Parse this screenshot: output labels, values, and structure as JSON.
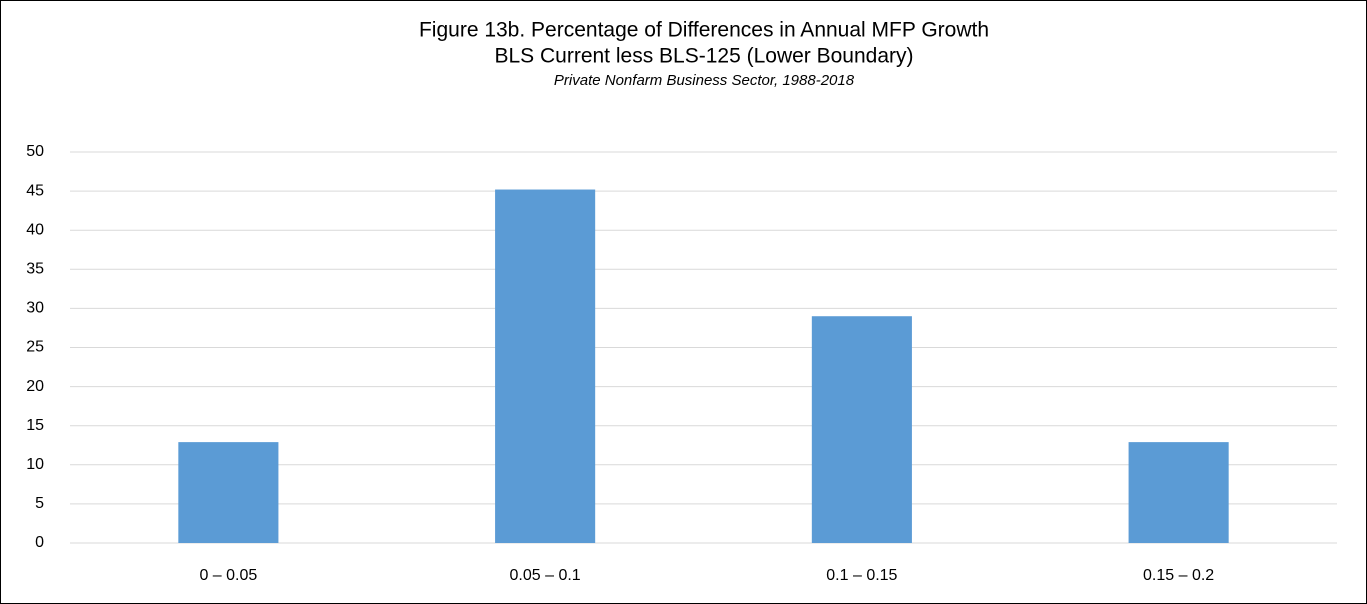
{
  "chart_data": {
    "type": "bar",
    "title": "Figure 13b. Percentage of Differences in Annual MFP Growth",
    "subtitle": "BLS Current less BLS-125 (Lower Boundary)",
    "note": "Private Nonfarm Business Sector, 1988-2018",
    "categories": [
      "0 – 0.05",
      "0.05 – 0.1",
      "0.1 – 0.15",
      "0.15 – 0.2"
    ],
    "values": [
      12.9,
      45.2,
      29.0,
      12.9
    ],
    "color": "#5b9bd5",
    "ylim": [
      0,
      50
    ],
    "yticks": [
      0,
      5,
      10,
      15,
      20,
      25,
      30,
      35,
      40,
      45,
      50
    ],
    "grid": true
  }
}
